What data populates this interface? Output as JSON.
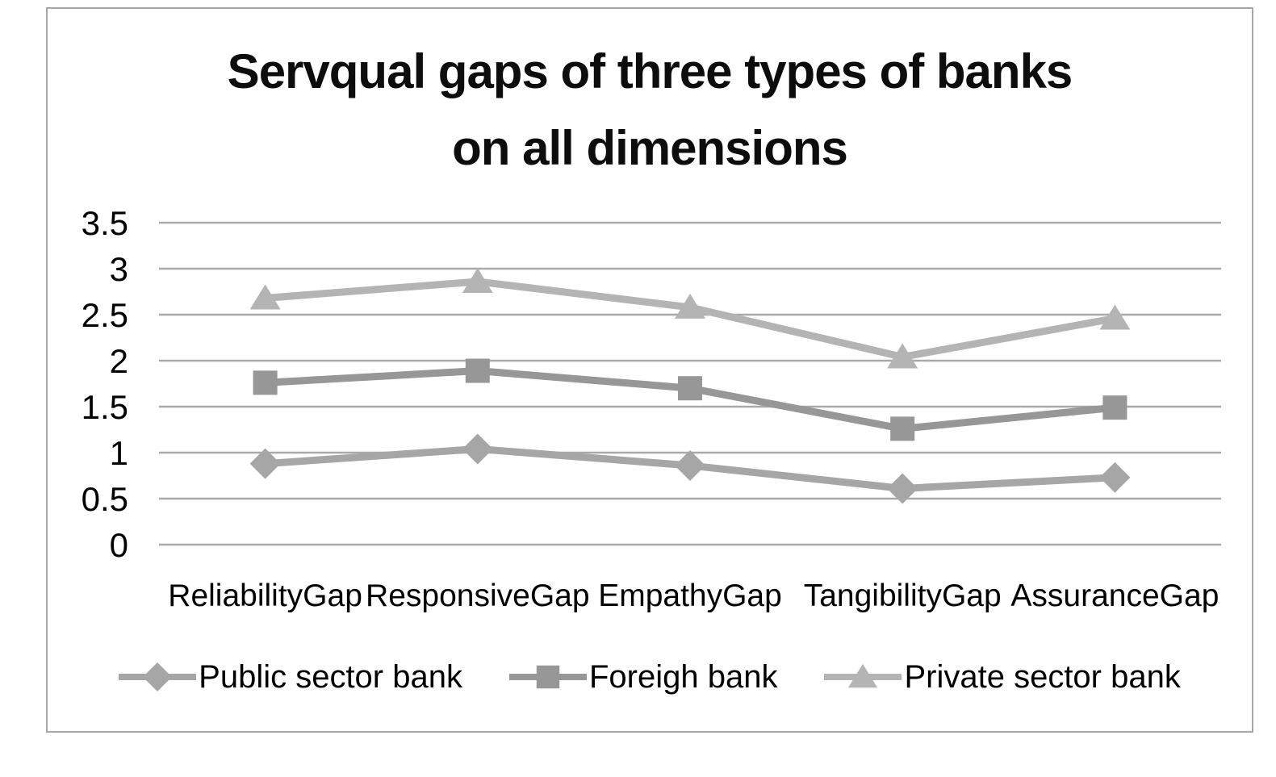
{
  "chart_data": {
    "type": "line",
    "title": "Servqual gaps of three types of banks on all dimensions",
    "title_lines": [
      "Servqual gaps of three types of banks",
      "on all dimensions"
    ],
    "categories": [
      "ReliabilityGap",
      "ResponsiveGap",
      "EmpathyGap",
      "TangibilityGap",
      "AssuranceGap"
    ],
    "series": [
      {
        "name": "Public sector bank",
        "marker": "diamond",
        "color": "#a6a6a6",
        "values": [
          0.88,
          1.04,
          0.86,
          0.61,
          0.73
        ]
      },
      {
        "name": "Foreigh bank",
        "marker": "square",
        "color": "#979797",
        "values": [
          1.76,
          1.89,
          1.7,
          1.26,
          1.49
        ]
      },
      {
        "name": "Private sector bank",
        "marker": "triangle",
        "color": "#b4b4b4",
        "values": [
          2.68,
          2.86,
          2.58,
          2.04,
          2.46
        ]
      }
    ],
    "ylim": [
      0,
      3.5
    ],
    "ytick_step": 0.5,
    "yticks": [
      "0",
      "0.5",
      "1",
      "1.5",
      "2",
      "2.5",
      "3",
      "3.5"
    ],
    "xlabel": "",
    "ylabel": "",
    "grid": true,
    "gridline_color": "#a9a9a9",
    "legend_position": "bottom",
    "frame_border_color": "#a6a6a6",
    "background_color": "#ffffff",
    "text_color": "#000000"
  }
}
